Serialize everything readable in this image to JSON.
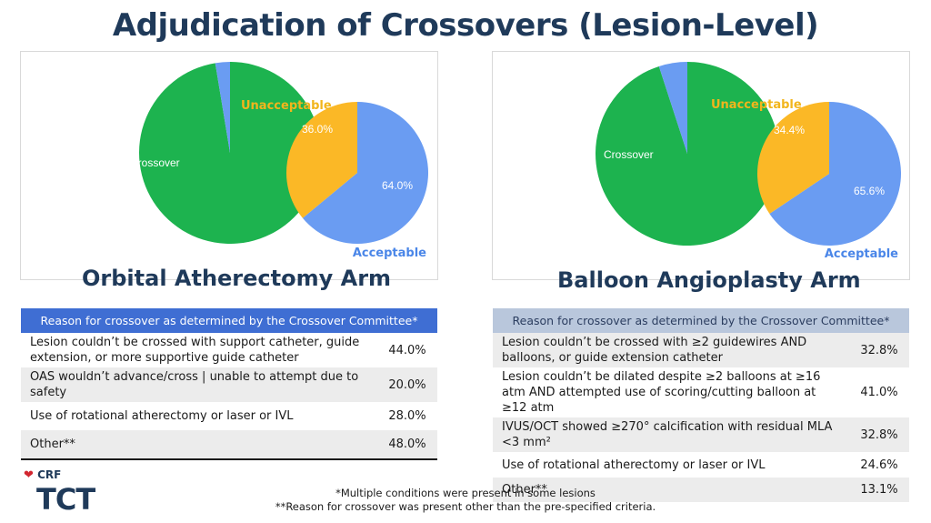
{
  "slide_title": "Adjudication of Crossovers (Lesion-Level)",
  "chart_data": [
    {
      "type": "pie",
      "arm": "Orbital Atherectomy Arm",
      "main_pie": {
        "label": "Crossover",
        "crossover_share_pct": 2.6,
        "colors": [
          "#1db34f",
          "#6a9cf2"
        ]
      },
      "breakdown": {
        "unacceptable_label": "Unacceptable",
        "unacceptable_pct": "36.0%",
        "unacceptable_value": 36.0,
        "acceptable_label": "Acceptable",
        "acceptable_pct": "64.0%",
        "acceptable_value": 64.0
      },
      "colors": {
        "unacceptable": "#fbb826",
        "acceptable": "#6a9cf2",
        "label_unacceptable": "#f2b51c",
        "label_acceptable": "#4a86e8"
      }
    },
    {
      "type": "pie",
      "arm": "Balloon Angioplasty Arm",
      "main_pie": {
        "label": "Crossover",
        "crossover_share_pct": 5.0,
        "colors": [
          "#1db34f",
          "#6a9cf2"
        ]
      },
      "breakdown": {
        "unacceptable_label": "Unacceptable",
        "unacceptable_pct": "34.4%",
        "unacceptable_value": 34.4,
        "acceptable_label": "Acceptable",
        "acceptable_pct": "65.6%",
        "acceptable_value": 65.6
      },
      "colors": {
        "unacceptable": "#fbb826",
        "acceptable": "#6a9cf2",
        "label_unacceptable": "#f2b51c",
        "label_acceptable": "#4a86e8"
      }
    }
  ],
  "left": {
    "arm_title": "Orbital Atherectomy Arm",
    "table_header": "Reason for crossover as determined by the Crossover Committee*",
    "rows": [
      {
        "reason": "Lesion couldn’t be crossed with support catheter, guide extension, or more supportive guide catheter",
        "value": "44.0%"
      },
      {
        "reason": "OAS wouldn’t advance/cross | unable to attempt due to safety",
        "value": "20.0%"
      },
      {
        "reason": "Use of rotational atherectomy or laser or IVL",
        "value": "28.0%"
      },
      {
        "reason": "Other**",
        "value": "48.0%"
      }
    ]
  },
  "right": {
    "arm_title": "Balloon Angioplasty Arm",
    "table_header": "Reason for crossover as determined by the Crossover Committee*",
    "rows": [
      {
        "reason": "Lesion couldn’t be crossed with ≥2 guidewires AND balloons, or guide extension catheter",
        "value": "32.8%"
      },
      {
        "reason": "Lesion couldn’t be dilated despite ≥2 balloons at ≥16 atm AND attempted use of scoring/cutting balloon at ≥12 atm",
        "value": "41.0%"
      },
      {
        "reason": "IVUS/OCT showed ≥270° calcification with residual MLA <3 mm²",
        "value": "32.8%"
      },
      {
        "reason": "Use of rotational atherectomy or laser or IVL",
        "value": "24.6%"
      },
      {
        "reason": "Other**",
        "value": "13.1%"
      }
    ]
  },
  "footnotes": {
    "line1": "*Multiple conditions were present in some lesions",
    "line2": "**Reason for crossover was present other than the pre-specified criteria."
  },
  "logo": {
    "crf": "CRF",
    "tct": "TCT"
  }
}
